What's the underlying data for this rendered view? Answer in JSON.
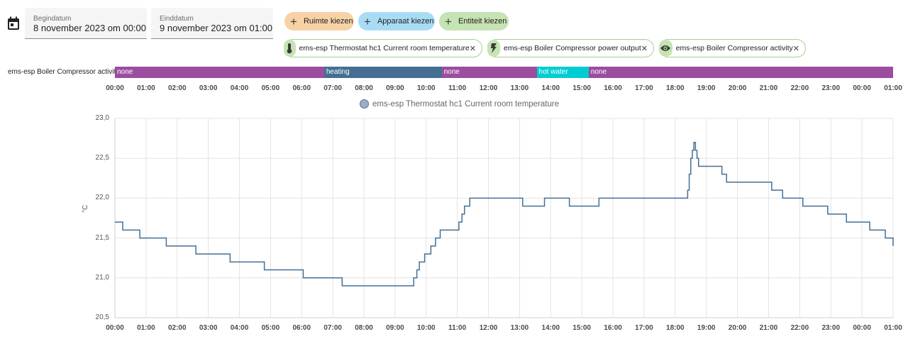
{
  "header": {
    "start_label": "Begindatum",
    "start_value": "8 november 2023 om 00:00",
    "end_label": "Einddatum",
    "end_value": "9 november 2023 om 01:00"
  },
  "pickers": {
    "area": "Ruimte kiezen",
    "device": "Apparaat kiezen",
    "entity": "Entiteit kiezen"
  },
  "chips": [
    {
      "label": "ems-esp Thermostat hc1 Current room temperature",
      "icon": "thermometer-icon"
    },
    {
      "label": "ems-esp Boiler Compressor power output",
      "icon": "lightning-icon"
    },
    {
      "label": "ems-esp Boiler Compressor activity",
      "icon": "eye-icon"
    }
  ],
  "timeline": {
    "label": "ems-esp Boiler Compressor activity",
    "segments": [
      {
        "state": "none",
        "start": 0.0,
        "end": 6.72,
        "color": "#9c4d9f"
      },
      {
        "state": "heating",
        "start": 6.72,
        "end": 10.5,
        "color": "#456f92"
      },
      {
        "state": "none",
        "start": 10.5,
        "end": 13.55,
        "color": "#9c4d9f"
      },
      {
        "state": "hot water",
        "start": 13.55,
        "end": 15.22,
        "color": "#00cdd1"
      },
      {
        "state": "none",
        "start": 15.22,
        "end": 25.0,
        "color": "#9c4d9f"
      }
    ]
  },
  "time_ticks": [
    "00:00",
    "01:00",
    "02:00",
    "03:00",
    "04:00",
    "05:00",
    "06:00",
    "07:00",
    "08:00",
    "09:00",
    "10:00",
    "11:00",
    "12:00",
    "13:00",
    "14:00",
    "15:00",
    "16:00",
    "17:00",
    "18:00",
    "19:00",
    "20:00",
    "21:00",
    "22:00",
    "23:00",
    "00:00",
    "01:00"
  ],
  "chart_data": {
    "type": "line",
    "legend": "ems-esp Thermostat hc1 Current room temperature",
    "ylabel": "°C",
    "ylim": [
      20.5,
      23.0
    ],
    "yticks": [
      "23,0",
      "22,5",
      "22,0",
      "21,5",
      "21,0",
      "20,5"
    ],
    "ytick_values": [
      23.0,
      22.5,
      22.0,
      21.5,
      21.0,
      20.5
    ],
    "xlim_hours": [
      0,
      25
    ],
    "line_color": "#456f92",
    "grid": true,
    "step": true,
    "series": [
      {
        "x_hours": [
          0,
          0.25,
          0.8,
          1.65,
          2.6,
          3.7,
          4.8,
          6.05,
          7.3,
          9.6,
          9.7,
          9.78,
          9.95,
          10.15,
          10.3,
          10.45,
          11.05,
          11.15,
          11.23,
          11.4,
          13.1,
          13.8,
          14.6,
          15.55,
          18.4,
          18.45,
          18.5,
          18.55,
          18.6,
          18.65,
          18.7,
          18.75,
          18.85,
          19.5,
          19.65,
          21.1,
          21.45,
          22.1,
          22.9,
          23.5,
          24.25,
          24.75,
          25.0
        ],
        "y": [
          21.7,
          21.6,
          21.5,
          21.4,
          21.3,
          21.2,
          21.1,
          21.0,
          20.9,
          21.0,
          21.1,
          21.2,
          21.3,
          21.4,
          21.5,
          21.6,
          21.7,
          21.8,
          21.9,
          22.0,
          21.9,
          22.0,
          21.9,
          22.0,
          22.1,
          22.3,
          22.5,
          22.6,
          22.7,
          22.6,
          22.5,
          22.4,
          22.4,
          22.3,
          22.2,
          22.1,
          22.0,
          21.9,
          21.8,
          21.7,
          21.6,
          21.5,
          21.4
        ]
      }
    ]
  }
}
